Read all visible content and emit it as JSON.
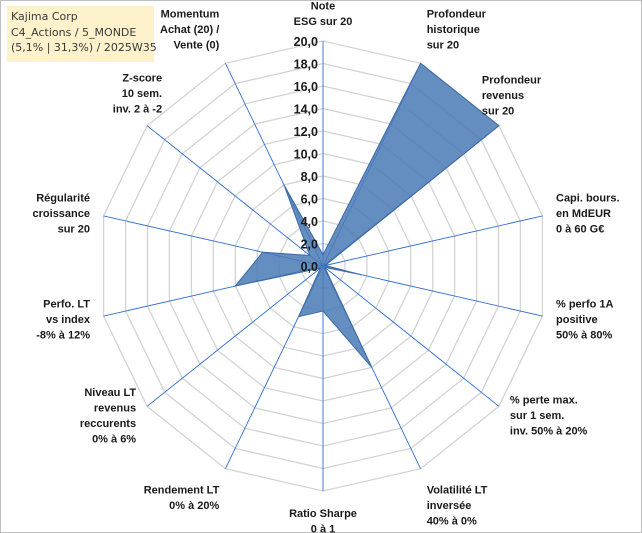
{
  "title_box": {
    "line1": "Kajima Corp",
    "line2": "C4_Actions / 5_MONDE",
    "line3": "(5,1% | 31,3%) / 2025W35"
  },
  "chart_data": {
    "type": "radar",
    "title": "",
    "rlim": [
      0,
      20
    ],
    "r_ticks": [
      "0,0",
      "2,0",
      "4,0",
      "6,0",
      "8,0",
      "10,0",
      "12,0",
      "14,0",
      "16,0",
      "18,0",
      "20,0"
    ],
    "grid": true,
    "axes": [
      [
        "Note",
        "ESG sur 20"
      ],
      [
        "Profondeur",
        "historique",
        "sur 20"
      ],
      [
        "Profondeur",
        "revenus",
        "sur 20"
      ],
      [
        "Capi. bours.",
        "en MdEUR",
        "0 à 60 G€"
      ],
      [
        "% perfo 1A",
        "positive",
        "50% à 80%"
      ],
      [
        "% perte max.",
        "sur 1 sem.",
        "inv. 50% à 20%"
      ],
      [
        "Volatilité LT",
        "inversée",
        "40% à 0%"
      ],
      [
        "Ratio Sharpe",
        "0 à 1"
      ],
      [
        "Rendement LT",
        "0% à 20%"
      ],
      [
        "Niveau LT",
        "revenus",
        "reccurents",
        "0% à 6%"
      ],
      [
        "Perfo. LT",
        "vs index",
        "-8% à 12%"
      ],
      [
        "Régularité",
        "croissance",
        "sur 20"
      ],
      [
        "Z-score",
        "10 sem.",
        "inv. 2 à -2"
      ],
      [
        "Momentum",
        "Achat (20) /",
        "Vente (0)"
      ]
    ],
    "series": [
      {
        "values": [
          1.0,
          20.0,
          20.0,
          0.2,
          3.5,
          0.2,
          10.0,
          4.0,
          5.0,
          0.3,
          8.0,
          5.5,
          1.5,
          8.0
        ]
      }
    ]
  },
  "colors": {
    "fill": "#4a7ab5",
    "stroke": "#3c6aa6",
    "grid": "#d3d3d3",
    "spoke": "#2f6fd0",
    "title_bg": "#fdf2cc"
  }
}
